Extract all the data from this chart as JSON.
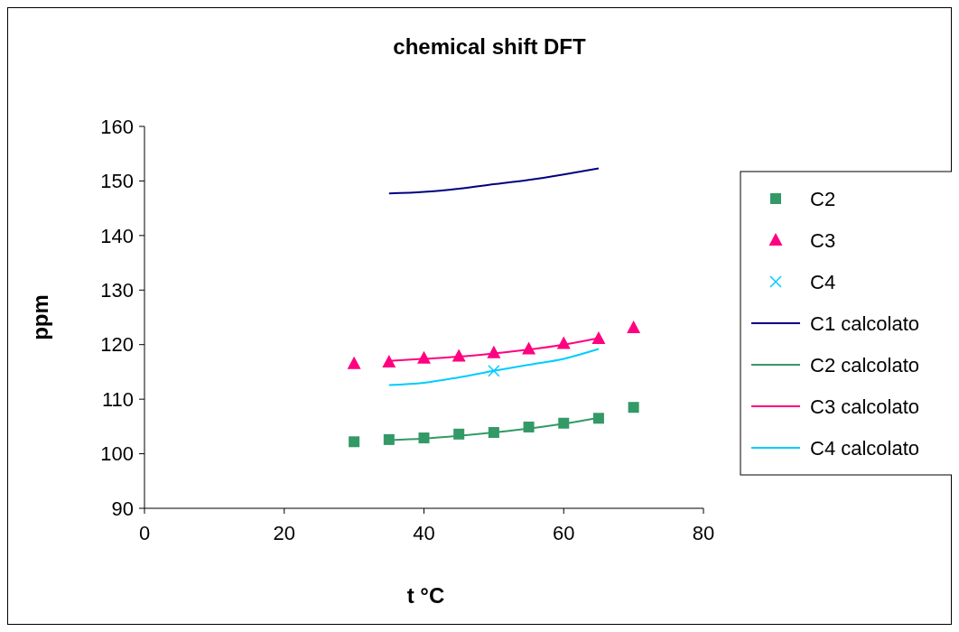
{
  "chart_data": {
    "type": "scatter",
    "title": "chemical shift DFT",
    "xlabel": "t °C",
    "ylabel": "ppm",
    "xlim": [
      0,
      80
    ],
    "xticks": [
      0,
      20,
      40,
      60,
      80
    ],
    "ylim": [
      90,
      160
    ],
    "yticks": [
      90,
      100,
      110,
      120,
      130,
      140,
      150,
      160
    ],
    "grid": false,
    "legend": "right",
    "series": [
      {
        "name": "C2",
        "marker": "square",
        "color": "#339966",
        "x": [
          30,
          35,
          40,
          45,
          50,
          55,
          60,
          65,
          70
        ],
        "values": [
          102.2,
          102.6,
          102.9,
          103.6,
          103.9,
          104.9,
          105.6,
          106.5,
          108.5
        ]
      },
      {
        "name": "C3",
        "marker": "triangle",
        "color": "#ff0080",
        "x": [
          30,
          35,
          40,
          45,
          50,
          55,
          60,
          65,
          70
        ],
        "values": [
          116.5,
          116.8,
          117.5,
          117.9,
          118.5,
          119.2,
          120.2,
          121.1,
          123.1
        ]
      },
      {
        "name": "C4",
        "marker": "cross",
        "color": "#00ccff",
        "x": [
          50
        ],
        "values": [
          115.2
        ]
      },
      {
        "name": "C1 calcolato",
        "type": "line",
        "marker": "none",
        "color": "#000080",
        "x": [
          35,
          40,
          45,
          50,
          55,
          60,
          65
        ],
        "values": [
          147.7,
          148.0,
          148.6,
          149.4,
          150.2,
          151.2,
          152.3
        ]
      },
      {
        "name": "C2 calcolato",
        "type": "line",
        "marker": "none",
        "color": "#339966",
        "x": [
          35,
          40,
          45,
          50,
          55,
          60,
          65
        ],
        "values": [
          102.5,
          102.8,
          103.3,
          103.9,
          104.6,
          105.5,
          106.6
        ]
      },
      {
        "name": "C3 calcolato",
        "type": "line",
        "marker": "none",
        "color": "#ff0080",
        "x": [
          35,
          40,
          45,
          50,
          55,
          60,
          65
        ],
        "values": [
          117.0,
          117.4,
          117.8,
          118.4,
          119.1,
          120.0,
          121.2
        ]
      },
      {
        "name": "C4 calcolato",
        "type": "line",
        "marker": "none",
        "color": "#00ccff",
        "x": [
          35,
          40,
          45,
          50,
          55,
          60,
          65
        ],
        "values": [
          112.6,
          113.0,
          114.0,
          115.2,
          116.3,
          117.4,
          119.2
        ]
      }
    ]
  }
}
